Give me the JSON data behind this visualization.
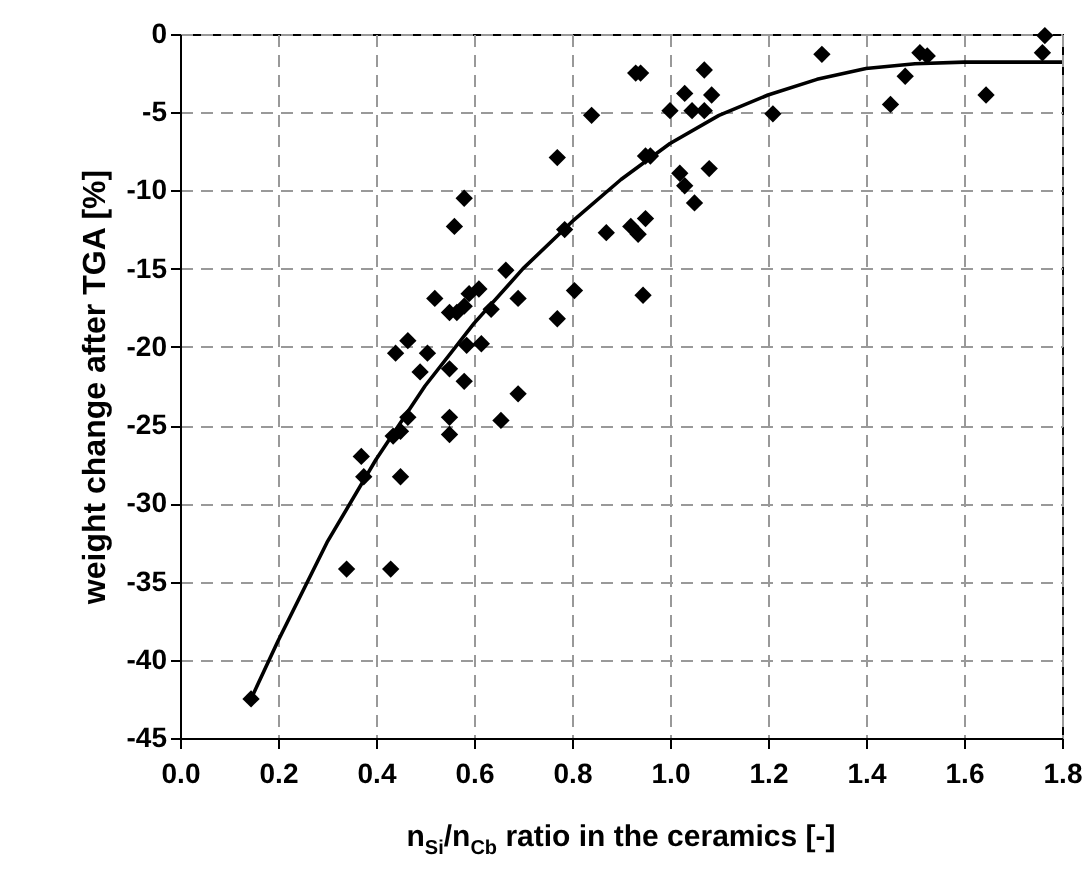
{
  "chart_data": {
    "type": "scatter",
    "xlabel": "n$_{Si}$/n$_{Cb}$ ratio in the ceramics [-]",
    "ylabel": "weight change after TGA [%]",
    "xlim": [
      0,
      1.8
    ],
    "ylim": [
      -45,
      0
    ],
    "xticks": [
      {
        "value": 0,
        "label": "0.0"
      },
      0.2,
      0.4,
      0.6,
      0.8,
      {
        "value": 1,
        "label": "1.0"
      },
      1.2,
      1.4,
      1.6,
      1.8
    ],
    "yticks": [
      -45,
      -40,
      -35,
      -30,
      -25,
      -20,
      -15,
      -10,
      -5,
      0
    ],
    "grid": true,
    "series": [
      {
        "color": "#000000",
        "marker": "diamond",
        "x": [
          0.145,
          0.34,
          0.43,
          0.37,
          0.375,
          0.435,
          0.45,
          0.45,
          0.465,
          0.44,
          0.465,
          0.49,
          0.505,
          0.52,
          0.55,
          0.565,
          0.55,
          0.55,
          0.55,
          0.56,
          0.58,
          0.58,
          0.58,
          0.585,
          0.59,
          0.61,
          0.615,
          0.635,
          0.655,
          0.665,
          0.69,
          0.69,
          0.77,
          0.77,
          0.785,
          0.805,
          0.84,
          0.87,
          0.92,
          0.93,
          0.94,
          0.935,
          0.945,
          0.95,
          0.95,
          0.96,
          1.0,
          1.02,
          1.03,
          1.03,
          1.045,
          1.05,
          1.07,
          1.07,
          1.08,
          1.085,
          1.21,
          1.31,
          1.45,
          1.48,
          1.51,
          1.525,
          1.645,
          1.765,
          1.76
        ],
        "values": [
          -42.5,
          -34.2,
          -34.2,
          -27.0,
          -28.3,
          -25.7,
          -25.4,
          -28.3,
          -24.5,
          -20.4,
          -19.6,
          -21.6,
          -20.4,
          -16.9,
          -17.8,
          -17.8,
          -21.4,
          -24.5,
          -25.6,
          -12.3,
          -10.5,
          -17.4,
          -22.2,
          -19.9,
          -16.6,
          -16.3,
          -19.8,
          -17.6,
          -24.7,
          -15.1,
          -16.9,
          -23.0,
          -7.9,
          -18.2,
          -12.5,
          -16.4,
          -5.2,
          -12.7,
          -12.3,
          -2.5,
          -2.5,
          -12.8,
          -16.7,
          -7.8,
          -11.8,
          -7.8,
          -4.9,
          -8.9,
          -9.7,
          -3.8,
          -4.9,
          -10.8,
          -4.9,
          -2.3,
          -8.6,
          -3.9,
          -5.1,
          -1.3,
          -4.5,
          -2.7,
          -1.2,
          -1.4,
          -3.9,
          -0.1,
          -1.2
        ]
      },
      {
        "type": "line",
        "color": "#000000",
        "line_style": "solid",
        "x": [
          0.145,
          0.2,
          0.3,
          0.4,
          0.5,
          0.6,
          0.7,
          0.8,
          0.9,
          1.0,
          1.1,
          1.2,
          1.3,
          1.4,
          1.5,
          1.6,
          1.8
        ],
        "values": [
          -42.5,
          -38.8,
          -32.5,
          -27.2,
          -22.5,
          -18.5,
          -15,
          -12,
          -9.3,
          -7,
          -5.2,
          -3.9,
          -2.9,
          -2.2,
          -1.9,
          -1.8,
          -1.8
        ]
      }
    ]
  }
}
